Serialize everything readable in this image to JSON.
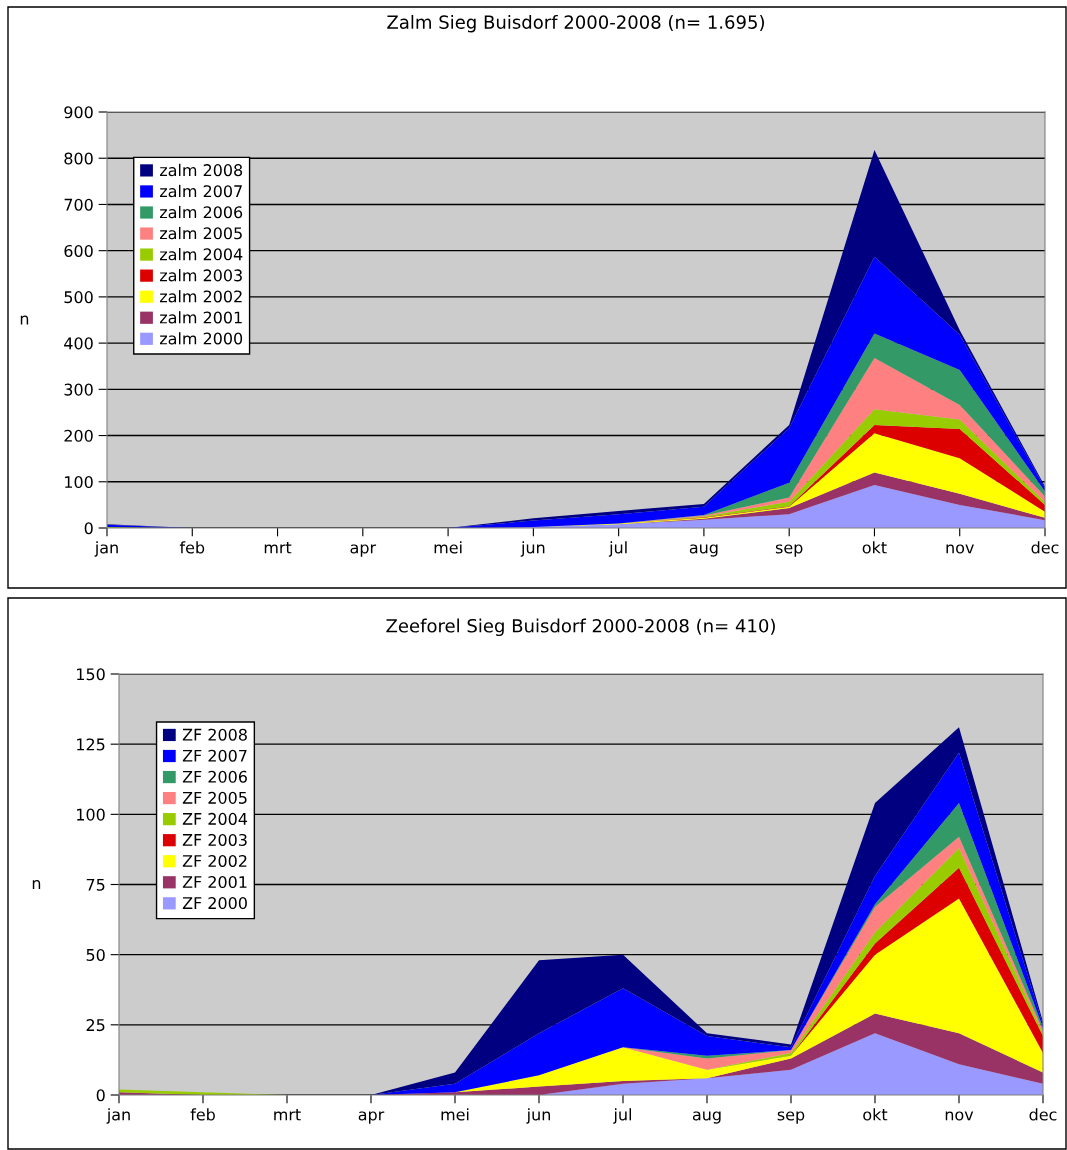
{
  "chart_data": [
    {
      "type": "area",
      "stacked": true,
      "title": "Zalm Sieg Buisdorf 2000-2008 (n= 1.695)",
      "ylabel": "n",
      "categories": [
        "jan",
        "feb",
        "mrt",
        "apr",
        "mei",
        "jun",
        "jul",
        "aug",
        "sep",
        "okt",
        "nov",
        "dec"
      ],
      "ylim": [
        0,
        900
      ],
      "yticks": [
        0,
        100,
        200,
        300,
        400,
        500,
        600,
        700,
        800,
        900
      ],
      "grid": "y",
      "legend": "top left",
      "series": [
        {
          "name": "zalm 2000",
          "color": "#9999ff",
          "values": [
            0,
            0,
            0,
            0,
            0,
            2,
            8,
            18,
            30,
            93,
            50,
            17
          ]
        },
        {
          "name": "zalm 2001",
          "color": "#993366",
          "values": [
            0,
            0,
            0,
            0,
            0,
            0,
            0,
            2,
            13,
            27,
            24,
            5
          ]
        },
        {
          "name": "zalm 2002",
          "color": "#ffff00",
          "values": [
            0,
            0,
            0,
            0,
            0,
            0,
            2,
            2,
            3,
            85,
            77,
            13
          ]
        },
        {
          "name": "zalm 2003",
          "color": "#dd0000",
          "values": [
            0,
            0,
            0,
            0,
            0,
            0,
            0,
            1,
            1,
            18,
            63,
            15
          ]
        },
        {
          "name": "zalm 2004",
          "color": "#99cc00",
          "values": [
            2,
            0,
            0,
            0,
            0,
            0,
            0,
            2,
            10,
            34,
            21,
            6
          ]
        },
        {
          "name": "zalm 2005",
          "color": "#ff8080",
          "values": [
            0,
            0,
            0,
            0,
            0,
            0,
            0,
            2,
            9,
            111,
            31,
            12
          ]
        },
        {
          "name": "zalm 2006",
          "color": "#339966",
          "values": [
            0,
            0,
            0,
            0,
            0,
            0,
            0,
            1,
            32,
            53,
            76,
            11
          ]
        },
        {
          "name": "zalm 2007",
          "color": "#0000ff",
          "values": [
            5,
            0,
            0,
            0,
            0,
            14,
            20,
            18,
            118,
            166,
            76,
            7
          ]
        },
        {
          "name": "zalm 2008",
          "color": "#000080",
          "values": [
            1,
            0,
            0,
            0,
            0,
            5,
            7,
            6,
            7,
            231,
            10,
            4
          ]
        }
      ]
    },
    {
      "type": "area",
      "stacked": true,
      "title": "Zeeforel Sieg Buisdorf 2000-2008 (n= 410)",
      "ylabel": "n",
      "categories": [
        "jan",
        "feb",
        "mrt",
        "apr",
        "mei",
        "jun",
        "jul",
        "aug",
        "sep",
        "okt",
        "nov",
        "dec"
      ],
      "ylim": [
        0,
        150
      ],
      "yticks": [
        0,
        25,
        50,
        75,
        100,
        125,
        150
      ],
      "grid": "y",
      "legend": "top left",
      "series": [
        {
          "name": "ZF 2000",
          "color": "#9999ff",
          "values": [
            0,
            0,
            0,
            0,
            0,
            0,
            4,
            6,
            9,
            22,
            11,
            4
          ]
        },
        {
          "name": "ZF 2001",
          "color": "#993366",
          "values": [
            1,
            0,
            0,
            0,
            1,
            3,
            1,
            0,
            4,
            7,
            11,
            4
          ]
        },
        {
          "name": "ZF 2002",
          "color": "#ffff00",
          "values": [
            0,
            0,
            0,
            0,
            0,
            4,
            12,
            3,
            1,
            21,
            48,
            7
          ]
        },
        {
          "name": "ZF 2003",
          "color": "#dd0000",
          "values": [
            0,
            0,
            0,
            0,
            0,
            0,
            0,
            0,
            0,
            4,
            11,
            6
          ]
        },
        {
          "name": "ZF 2004",
          "color": "#99cc00",
          "values": [
            1,
            1,
            0,
            0,
            0,
            0,
            0,
            0,
            1,
            4,
            7,
            1
          ]
        },
        {
          "name": "ZF 2005",
          "color": "#ff8080",
          "values": [
            0,
            0,
            0,
            0,
            0,
            0,
            0,
            4,
            1,
            9,
            4,
            1
          ]
        },
        {
          "name": "ZF 2006",
          "color": "#339966",
          "values": [
            0,
            0,
            0,
            0,
            0,
            0,
            0,
            1,
            0,
            1,
            12,
            1
          ]
        },
        {
          "name": "ZF 2007",
          "color": "#0000ff",
          "values": [
            0,
            0,
            0,
            0,
            3,
            15,
            21,
            7,
            1,
            10,
            18,
            1
          ]
        },
        {
          "name": "ZF 2008",
          "color": "#000080",
          "values": [
            0,
            0,
            0,
            0,
            4,
            26,
            12,
            1,
            1,
            26,
            9,
            1
          ]
        }
      ]
    }
  ]
}
